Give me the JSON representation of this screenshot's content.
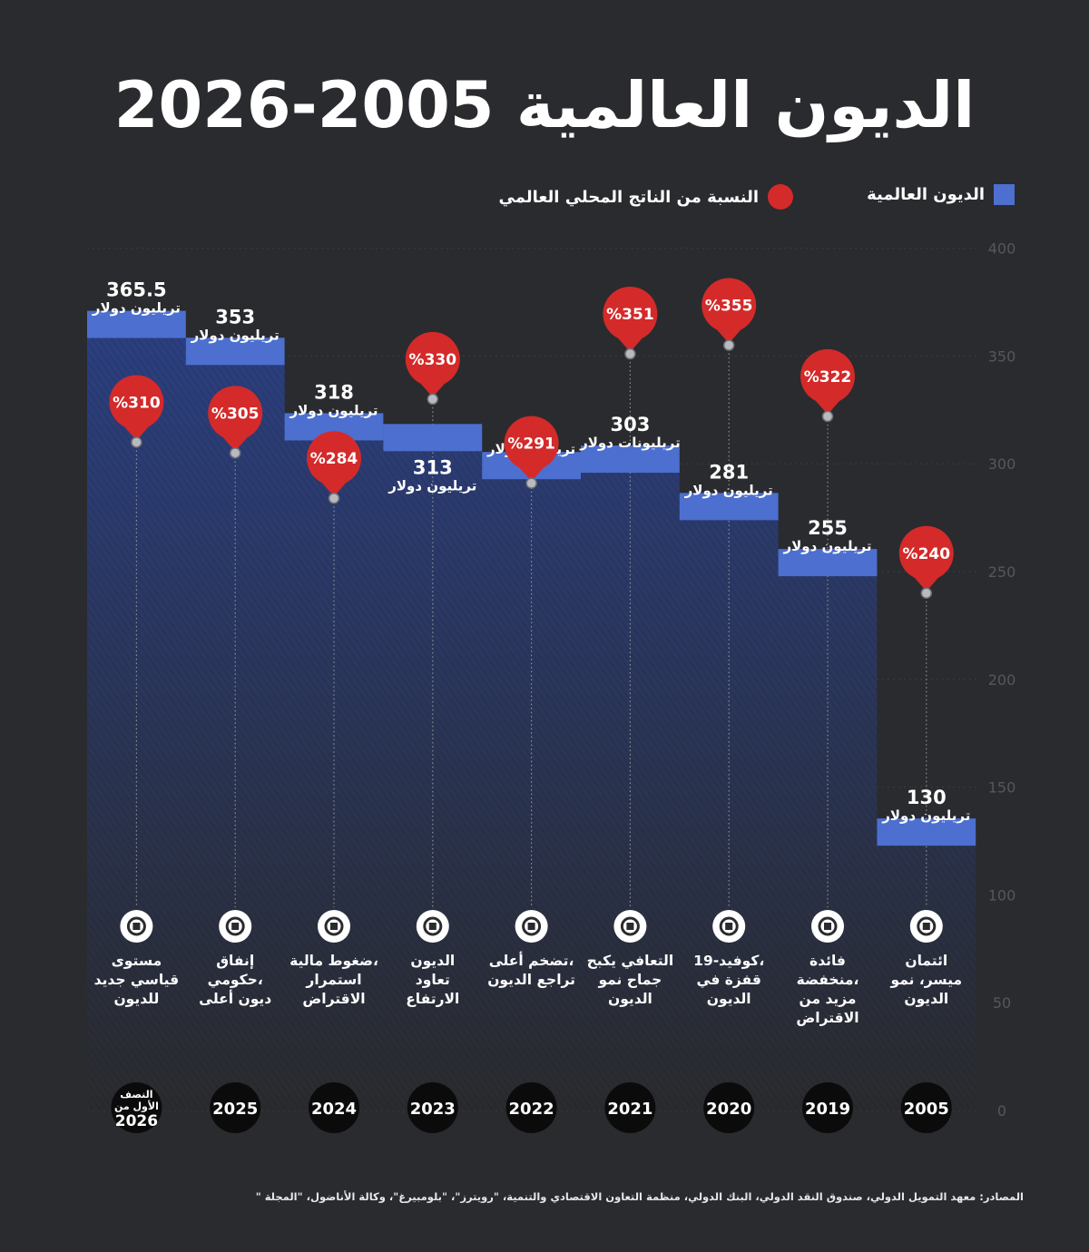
{
  "title": "الديون العالمية 2005-2026",
  "legend": {
    "debt": "الديون العالمية",
    "gdp": "النسبة من الناتج المحلي العالمي"
  },
  "sources": "المصادر: معهد التمويل الدولي، صندوق النقد الدولي، البنك الدولي، منظمة التعاون الاقتصادي والتنمية، \"رويترز\"، \"بلومبيرغ\"، وكالة الأناضول، \"المجلة \"",
  "colors": {
    "background": "#2a2b2e",
    "debt_bar": "#4c6fd0",
    "area_top": "#2b3f80",
    "gdp_pin": "#d42a2a"
  },
  "chart_data": {
    "type": "bar",
    "ylim": [
      0,
      400
    ],
    "yticks": [
      0,
      50,
      100,
      150,
      200,
      250,
      300,
      350,
      400
    ],
    "categories": [
      "النصف الأول من 2026",
      "2025",
      "2024",
      "2023",
      "2022",
      "2021",
      "2020",
      "2019",
      "2005"
    ],
    "series": [
      {
        "name": "الديون العالمية",
        "values": [
          365.5,
          353,
          318,
          313,
          300,
          303,
          281,
          255,
          130
        ],
        "value_labels": [
          "365.5",
          "353",
          "318",
          "313",
          "300",
          "303",
          "281",
          "255",
          "130"
        ],
        "unit_labels": [
          "تريليون دولار",
          "تريليون دولار",
          "تريليون دولار",
          "تريليون دولار",
          "تريليون دولار",
          "تريليونات دولار",
          "تريليون دولار",
          "تريليون دولار",
          "تريليون دولار"
        ]
      },
      {
        "name": "النسبة من الناتج المحلي العالمي",
        "values": [
          310,
          305,
          284,
          330,
          291,
          351,
          355,
          322,
          240
        ],
        "labels": [
          "%310",
          "%305",
          "%284",
          "%330",
          "%291",
          "%351",
          "%355",
          "%322",
          "%240"
        ]
      }
    ],
    "notes": [
      [
        "مستوى",
        "قياسي جديد",
        "للديون"
      ],
      [
        "إنفاق",
        "حكومي،",
        "ديون أعلى"
      ],
      [
        "ضغوط مالية،",
        "استمرار",
        "الاقتراض"
      ],
      [
        "الديون",
        "تعاود",
        "الارتفاع"
      ],
      [
        "تضخم أعلى،",
        "تراجع الديون"
      ],
      [
        "التعافي يكبح",
        "جماح نمو",
        "الديون"
      ],
      [
        "كوفيد-19،",
        "قفزة في",
        "الديون"
      ],
      [
        "فائدة",
        "منخفضة،",
        "مزيد من",
        "الاقتراض"
      ],
      [
        "ائتمان",
        "ميسر، نمو",
        "الديون"
      ]
    ],
    "icons": [
      "money-bag-icon",
      "government-building-icon",
      "bank-pressure-icon",
      "coin-stack-icon",
      "rising-chart-icon",
      "recovery-money-icon",
      "virus-icon",
      "down-arrow-icon",
      "bank-percent-icon"
    ],
    "year_labels": [
      [
        "النصف",
        "الأول من",
        "2026"
      ],
      [
        "2025"
      ],
      [
        "2024"
      ],
      [
        "2023"
      ],
      [
        "2022"
      ],
      [
        "2021"
      ],
      [
        "2020"
      ],
      [
        "2019"
      ],
      [
        "2005"
      ]
    ]
  }
}
